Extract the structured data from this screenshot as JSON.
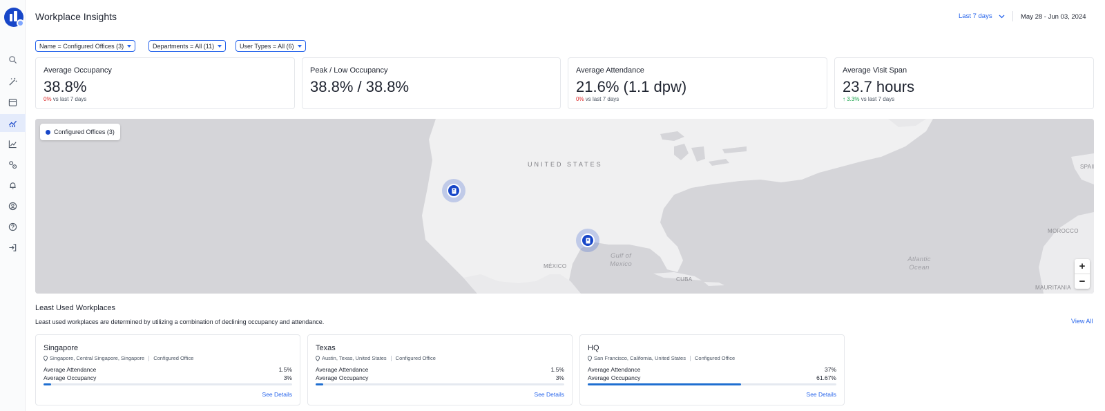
{
  "colors": {
    "accent": "#2563eb",
    "brand": "#1746c8",
    "negative": "#dc2626",
    "positive": "#16a34a",
    "bar": "#1f6fd1"
  },
  "sidebar": {
    "items": [
      {
        "icon": "search-icon"
      },
      {
        "icon": "magic-wand-icon"
      },
      {
        "icon": "calendar-window-icon"
      },
      {
        "icon": "analytics-icon",
        "active": true
      },
      {
        "icon": "line-chart-icon"
      },
      {
        "icon": "settings-gears-icon"
      },
      {
        "icon": "bell-icon"
      },
      {
        "icon": "user-circle-icon"
      },
      {
        "icon": "help-icon"
      },
      {
        "icon": "logout-icon"
      }
    ]
  },
  "header": {
    "title": "Workplace Insights",
    "range_label": "Last 7 days",
    "date_range": "May 28 - Jun 03, 2024"
  },
  "filters": [
    {
      "label": "Name = Configured Offices (3)"
    },
    {
      "label": "Departments = All (11)"
    },
    {
      "label": "User Types = All (6)"
    }
  ],
  "stats": [
    {
      "label": "Average Occupancy",
      "value": "38.8%",
      "delta": "0%",
      "delta_suffix": "vs last 7 days"
    },
    {
      "label": "Peak / Low Occupancy",
      "value": "38.8% / 38.8%"
    },
    {
      "label": "Average Attendance",
      "value": "21.6% (1.1 dpw)",
      "delta": "0%",
      "delta_suffix": "vs last 7 days"
    },
    {
      "label": "Average Visit Span",
      "value": "23.7 hours",
      "delta": "↑ 3.3%",
      "delta_suffix": "vs last 7 days"
    }
  ],
  "map": {
    "legend": "Configured Offices (3)",
    "labels": {
      "us": "UNITED STATES",
      "mexico": "MÉXICO",
      "gulf": "Gulf of Mexico",
      "cuba": "CUBA",
      "atlantic": "Atlantic Ocean",
      "morocco": "MOROCCO",
      "mauritania": "MAURITANIA",
      "spain": "SPAIN"
    },
    "zoom_in": "+",
    "zoom_out": "−"
  },
  "least_used": {
    "title": "Least Used Workplaces",
    "description": "Least used workplaces are determined by utilizing a combination of declining occupancy and attendance.",
    "view_all": "View All",
    "attendance_label": "Average Attendance",
    "occupancy_label": "Average Occupancy",
    "details_label": "See Details",
    "cards": [
      {
        "name": "Singapore",
        "location": "Singapore, Central Singapore, Singapore",
        "type": "Configured Office",
        "attendance": "1.5%",
        "occupancy": "3%",
        "occupancy_fraction": 0.03
      },
      {
        "name": "Texas",
        "location": "Austin, Texas, United States",
        "type": "Configured Office",
        "attendance": "1.5%",
        "occupancy": "3%",
        "occupancy_fraction": 0.03
      },
      {
        "name": "HQ",
        "location": "San Francisco, California, United States",
        "type": "Configured Office",
        "attendance": "37%",
        "occupancy": "61.67%",
        "occupancy_fraction": 0.6167
      }
    ]
  }
}
